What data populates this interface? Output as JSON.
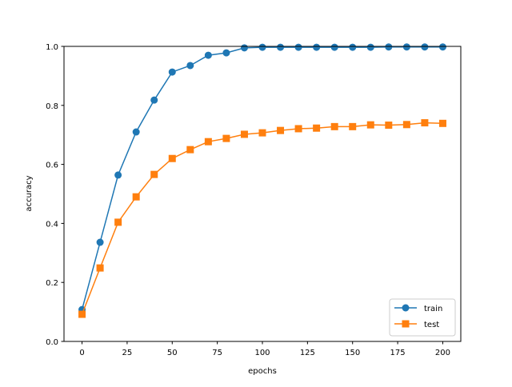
{
  "chart_data": {
    "type": "line",
    "title": "",
    "xlabel": "epochs",
    "ylabel": "accuracy",
    "xlim": [
      -10,
      210
    ],
    "ylim": [
      0.0,
      1.0
    ],
    "xticks": [
      0,
      25,
      50,
      75,
      100,
      125,
      150,
      175,
      200
    ],
    "xtick_labels": [
      "0",
      "25",
      "50",
      "75",
      "100",
      "125",
      "150",
      "175",
      "200"
    ],
    "yticks": [
      0.0,
      0.2,
      0.4,
      0.6,
      0.8,
      1.0
    ],
    "ytick_labels": [
      "0.0",
      "0.2",
      "0.4",
      "0.6",
      "0.8",
      "1.0"
    ],
    "grid": false,
    "legend_placement": "bottom-right",
    "x": [
      0,
      10,
      20,
      30,
      40,
      50,
      60,
      70,
      80,
      90,
      100,
      110,
      120,
      130,
      140,
      150,
      160,
      170,
      180,
      190,
      200
    ],
    "series": [
      {
        "name": "train",
        "color": "#1f77b4",
        "marker": "circle",
        "values": [
          0.108,
          0.336,
          0.564,
          0.71,
          0.818,
          0.913,
          0.935,
          0.97,
          0.978,
          0.995,
          0.997,
          0.997,
          0.997,
          0.997,
          0.997,
          0.997,
          0.997,
          0.998,
          0.998,
          0.998,
          0.998
        ]
      },
      {
        "name": "test",
        "color": "#ff7f0e",
        "marker": "square",
        "values": [
          0.092,
          0.249,
          0.404,
          0.49,
          0.566,
          0.62,
          0.65,
          0.677,
          0.688,
          0.702,
          0.707,
          0.715,
          0.721,
          0.723,
          0.728,
          0.728,
          0.734,
          0.733,
          0.735,
          0.741,
          0.739
        ]
      }
    ]
  }
}
